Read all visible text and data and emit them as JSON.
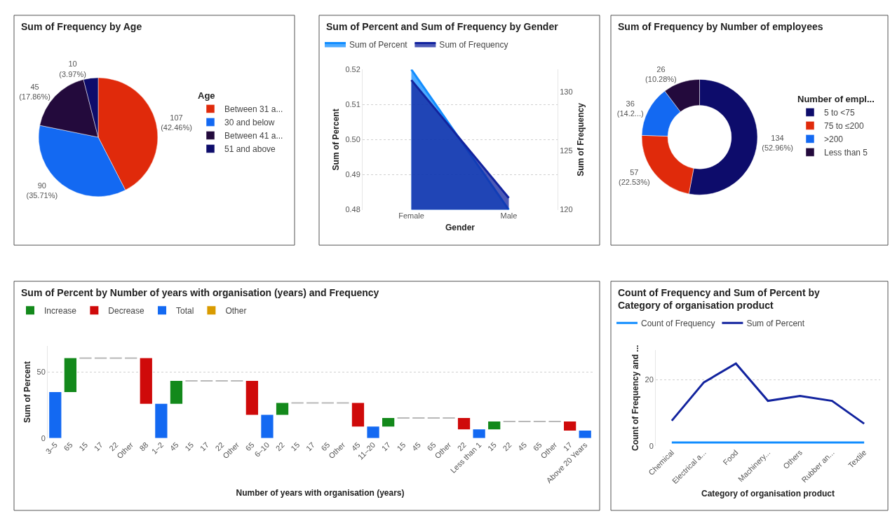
{
  "chart_data": [
    {
      "type": "pie",
      "title": "Sum of Frequency by Age",
      "legend_title": "Age",
      "legend": "right",
      "categories": [
        "Between 31 a...",
        "30 and below",
        "Between 41 a...",
        "51 and above"
      ],
      "values": [
        107,
        90,
        45,
        10
      ],
      "colors": [
        "#e02a0b",
        "#1369f2",
        "#230a3c",
        "#0d0c6b"
      ],
      "value_labels": [
        "107 (42.46%)",
        "90 (35.71%)",
        "45 (17.86%)",
        "10 (3.97%)"
      ]
    },
    {
      "type": "area",
      "title": "Sum of Percent and Sum of Frequency by Gender",
      "xlabel": "Gender",
      "ylabel": "Sum of Percent",
      "y2label": "Sum of Frequency",
      "legend": "top left",
      "grid": "y",
      "categories": [
        "Female",
        "Male"
      ],
      "series": [
        {
          "name": "Sum of Percent",
          "color": "#118dff",
          "values": [
            0.52,
            0.48
          ]
        },
        {
          "name": "Sum of Frequency",
          "color": "#12239e",
          "values": [
            131,
            121
          ],
          "axis": "y2"
        }
      ],
      "ylim": [
        0.48,
        0.52
      ],
      "yticks": [
        0.48,
        0.49,
        {
          "value": 0.5,
          "label": "0.50"
        },
        0.51,
        0.52
      ],
      "y2lim": [
        120,
        131.9
      ],
      "y2ticks": [
        120,
        125,
        130
      ]
    },
    {
      "type": "donut",
      "title": "Sum of Frequency by Number of employees",
      "legend_title": "Number of empl...",
      "legend": "right",
      "categories": [
        "5 to <75",
        "75 to ≤200",
        ">200",
        "Less than 5"
      ],
      "values": [
        134,
        57,
        36,
        26
      ],
      "colors": [
        "#0d0c6b",
        "#e02a0b",
        "#1369f2",
        "#230a3c"
      ],
      "value_labels": [
        "134 (52.96%)",
        "57 (22.53%)",
        "36 (14.2...)",
        "26 (10.28%)"
      ]
    },
    {
      "type": "bar",
      "title": "Sum of Percent by Number of years with organisation (years) and Frequency",
      "xlabel": "Number of years with organisation (years)",
      "ylabel": "Sum of Percent",
      "legend": "top left",
      "grid": "y",
      "categories": [
        "3–5",
        "65",
        "15",
        "17",
        "22",
        "Other",
        "88",
        "1–2",
        "45",
        "15",
        "17",
        "22",
        "Other",
        "65",
        "6–10",
        "22",
        "15",
        "17",
        "65",
        "Other",
        "45",
        "11–20",
        "17",
        "15",
        "45",
        "65",
        "Other",
        "22",
        "Less than 1",
        "15",
        "22",
        "45",
        "65",
        "Other",
        "17",
        "Above 20 Years"
      ],
      "series": [
        {
          "name": "Increase",
          "color": "#13891b",
          "base": [
            null,
            35,
            null,
            null,
            null,
            null,
            null,
            null,
            26,
            null,
            null,
            null,
            null,
            null,
            null,
            17.7,
            null,
            null,
            null,
            null,
            null,
            null,
            8.8,
            null,
            null,
            null,
            null,
            null,
            null,
            6.7,
            null,
            null,
            null,
            null,
            null,
            null
          ],
          "values": [
            null,
            25.7,
            null,
            null,
            null,
            null,
            null,
            null,
            17.5,
            null,
            null,
            null,
            null,
            null,
            null,
            9,
            null,
            null,
            null,
            null,
            null,
            null,
            6.5,
            null,
            null,
            null,
            null,
            null,
            null,
            5.9,
            null,
            null,
            null,
            null,
            null,
            null
          ]
        },
        {
          "name": "Decrease",
          "color": "#cf0a0a",
          "base": [
            null,
            null,
            null,
            null,
            null,
            null,
            60.7,
            null,
            null,
            null,
            null,
            null,
            null,
            43.5,
            null,
            null,
            null,
            null,
            null,
            null,
            26.7,
            null,
            null,
            null,
            null,
            null,
            null,
            15.3,
            null,
            null,
            null,
            null,
            null,
            null,
            12.6,
            null
          ],
          "values": [
            null,
            null,
            null,
            null,
            null,
            null,
            -34.7,
            null,
            null,
            null,
            null,
            null,
            null,
            -25.8,
            null,
            null,
            null,
            null,
            null,
            null,
            -17.9,
            null,
            null,
            null,
            null,
            null,
            null,
            -8.6,
            null,
            null,
            null,
            null,
            null,
            null,
            -6.8,
            null
          ]
        },
        {
          "name": "Total",
          "color": "#1369f2",
          "values": [
            35,
            null,
            null,
            null,
            null,
            null,
            null,
            26,
            null,
            null,
            null,
            null,
            null,
            null,
            17.7,
            null,
            null,
            null,
            null,
            null,
            null,
            8.8,
            null,
            null,
            null,
            null,
            null,
            null,
            6.7,
            null,
            null,
            null,
            null,
            null,
            null,
            5.8
          ]
        },
        {
          "name": "Other",
          "color": "#d99b00",
          "values": [
            null,
            null,
            null,
            null,
            null,
            null,
            null,
            null,
            null,
            null,
            null,
            null,
            null,
            null,
            null,
            null,
            null,
            null,
            null,
            null,
            null,
            null,
            null,
            null,
            null,
            null,
            null,
            null,
            null,
            null,
            null,
            null,
            null,
            null,
            null,
            null
          ]
        },
        {
          "color": "#b8b8b8",
          "base": [
            null,
            null,
            60.7,
            60.7,
            60.7,
            60.7,
            null,
            null,
            null,
            43.5,
            43.5,
            43.5,
            43.5,
            null,
            null,
            null,
            26.7,
            26.7,
            26.7,
            26.7,
            null,
            null,
            null,
            15.3,
            15.3,
            15.3,
            15.3,
            null,
            null,
            null,
            12.6,
            12.6,
            12.6,
            12.6,
            null,
            null
          ],
          "values": [
            null,
            null,
            0,
            0,
            0,
            0,
            null,
            null,
            null,
            0,
            0,
            0,
            0,
            null,
            null,
            null,
            0,
            0,
            0,
            0,
            null,
            null,
            null,
            0,
            0,
            0,
            0,
            null,
            null,
            null,
            0,
            0,
            0,
            0,
            null,
            null
          ]
        }
      ],
      "ylim": [
        0,
        70
      ],
      "yticks": [
        0,
        50
      ]
    },
    {
      "type": "line",
      "title": "Count of Frequency and Sum of Percent by Category of organisation product",
      "xlabel": "Category of organisation product",
      "ylabel": "Count of Frequency and ...",
      "legend": "top left",
      "grid": "y",
      "categories": [
        "Chemical",
        "Electrical a...",
        "Food",
        "Machinery...",
        "Others",
        "Rubber an...",
        "Textile"
      ],
      "series": [
        {
          "name": "Count of Frequency",
          "color": "#118dff",
          "values": [
            1,
            1,
            1,
            1,
            1,
            1,
            1
          ]
        },
        {
          "name": "Sum of Percent",
          "color": "#12239e",
          "values": [
            7.6,
            19.2,
            24.9,
            13.6,
            15.1,
            13.6,
            6.7
          ]
        }
      ],
      "ylim": [
        0,
        29
      ],
      "yticks": [
        0,
        20
      ]
    }
  ]
}
